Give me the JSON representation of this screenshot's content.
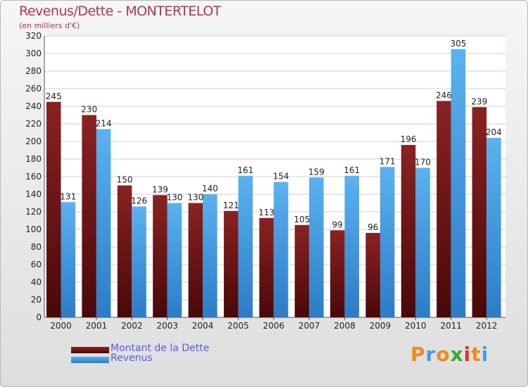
{
  "title": "Revenus/Dette - MONTERTELOT",
  "subtitle": "(en milliers d'€)",
  "chart_data": {
    "type": "bar",
    "categories": [
      "2000",
      "2001",
      "2002",
      "2003",
      "2004",
      "2005",
      "2006",
      "2007",
      "2008",
      "2009",
      "2010",
      "2011",
      "2012"
    ],
    "series": [
      {
        "name": "Montant de la Dette",
        "color": "#7a1a1a",
        "values": [
          245,
          230,
          150,
          139,
          130,
          121,
          113,
          105,
          99,
          96,
          196,
          246,
          239
        ]
      },
      {
        "name": "Revenus",
        "color": "#4aa3e6",
        "values": [
          131,
          214,
          126,
          130,
          140,
          161,
          154,
          159,
          161,
          171,
          170,
          305,
          204
        ]
      }
    ],
    "ylim": [
      0,
      320
    ],
    "yticks": [
      0,
      20,
      40,
      60,
      80,
      100,
      120,
      140,
      160,
      180,
      200,
      220,
      240,
      260,
      280,
      300,
      320
    ],
    "grid": true,
    "legend_position": "bottom-left"
  },
  "legend": {
    "dette_label": "Montant de la Dette",
    "revenus_label": "Revenus"
  },
  "logo": {
    "letters": [
      "P",
      "r",
      "o",
      "x",
      "i",
      "t",
      "i"
    ],
    "colors": [
      "#f08a1e",
      "#4a9be0",
      "#f08a1e",
      "#3aa83a",
      "#e0342a",
      "#f08a1e",
      "#4a9be0"
    ]
  }
}
